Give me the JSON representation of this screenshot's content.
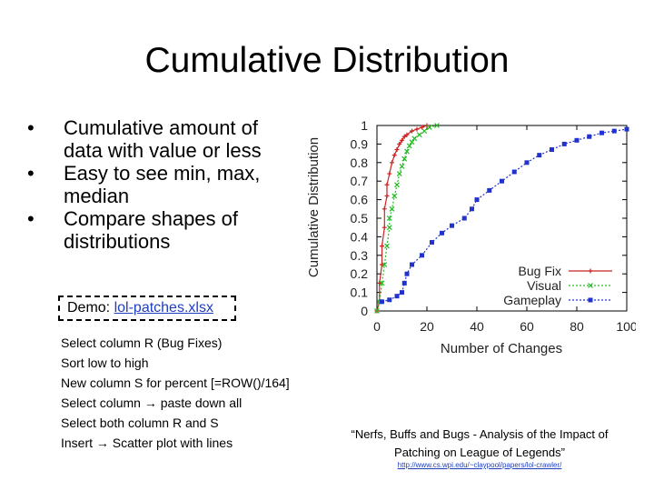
{
  "slide": {
    "title": "Cumulative Distribution",
    "bullets": [
      {
        "text": "Cumulative amount of data with value or less"
      },
      {
        "text": "Easy to see min, max, median"
      },
      {
        "text": "Compare shapes of distributions"
      }
    ],
    "bullet_symbol": "•",
    "demo": {
      "prefix": "Demo: ",
      "link": "lol-patches.xlsx"
    },
    "steps": [
      "Select column R (Bug Fixes)",
      "Sort low to high",
      "New column S for percent [=ROW()/164]",
      "Select column → paste down all",
      "Select both column R and S",
      "Insert → Scatter plot with lines"
    ],
    "citation": "“Nerfs, Buffs and Bugs - Analysis of the Impact of Patching on League of Legends”",
    "citation_url": "http://www.cs.wpi.edu/~claypool/papers/lol-crawler/"
  },
  "chart_data": {
    "type": "line",
    "xlabel": "Number of Changes",
    "ylabel": "Cumulative Distribution",
    "xlim": [
      0,
      100
    ],
    "ylim": [
      0,
      1
    ],
    "x_ticks": [
      "0",
      "20",
      "40",
      "60",
      "80",
      "100"
    ],
    "y_ticks": [
      "0",
      "0.1",
      "0.2",
      "0.3",
      "0.4",
      "0.5",
      "0.6",
      "0.7",
      "0.8",
      "0.9",
      "1"
    ],
    "legend_position": "bottom-right",
    "grid": false,
    "series": [
      {
        "name": "Bug Fix",
        "color": "#cc2222",
        "marker": "plus",
        "x": [
          0,
          1,
          1,
          2,
          2,
          3,
          3,
          4,
          4,
          5,
          6,
          7,
          8,
          9,
          10,
          11,
          12,
          14,
          16,
          18,
          20
        ],
        "y": [
          0.0,
          0.05,
          0.15,
          0.25,
          0.35,
          0.45,
          0.55,
          0.62,
          0.68,
          0.74,
          0.8,
          0.84,
          0.87,
          0.9,
          0.92,
          0.94,
          0.95,
          0.97,
          0.98,
          0.99,
          1.0
        ]
      },
      {
        "name": "Visual",
        "color": "#22bb22",
        "marker": "x",
        "x": [
          0,
          1,
          2,
          3,
          4,
          5,
          5,
          6,
          7,
          8,
          9,
          10,
          11,
          12,
          13,
          14,
          15,
          17,
          19,
          21,
          24
        ],
        "y": [
          0.0,
          0.05,
          0.15,
          0.25,
          0.35,
          0.45,
          0.5,
          0.55,
          0.62,
          0.68,
          0.74,
          0.78,
          0.82,
          0.86,
          0.89,
          0.91,
          0.93,
          0.95,
          0.97,
          0.99,
          1.0
        ]
      },
      {
        "name": "Gameplay",
        "color": "#2233cc",
        "marker": "square",
        "x": [
          2,
          5,
          8,
          10,
          11,
          12,
          14,
          18,
          22,
          26,
          30,
          35,
          38,
          40,
          45,
          50,
          55,
          60,
          65,
          70,
          75,
          80,
          85,
          90,
          95,
          100
        ],
        "y": [
          0.05,
          0.06,
          0.08,
          0.1,
          0.15,
          0.2,
          0.25,
          0.3,
          0.37,
          0.42,
          0.46,
          0.5,
          0.55,
          0.6,
          0.65,
          0.7,
          0.75,
          0.8,
          0.84,
          0.87,
          0.9,
          0.92,
          0.94,
          0.96,
          0.97,
          0.98
        ]
      }
    ]
  }
}
